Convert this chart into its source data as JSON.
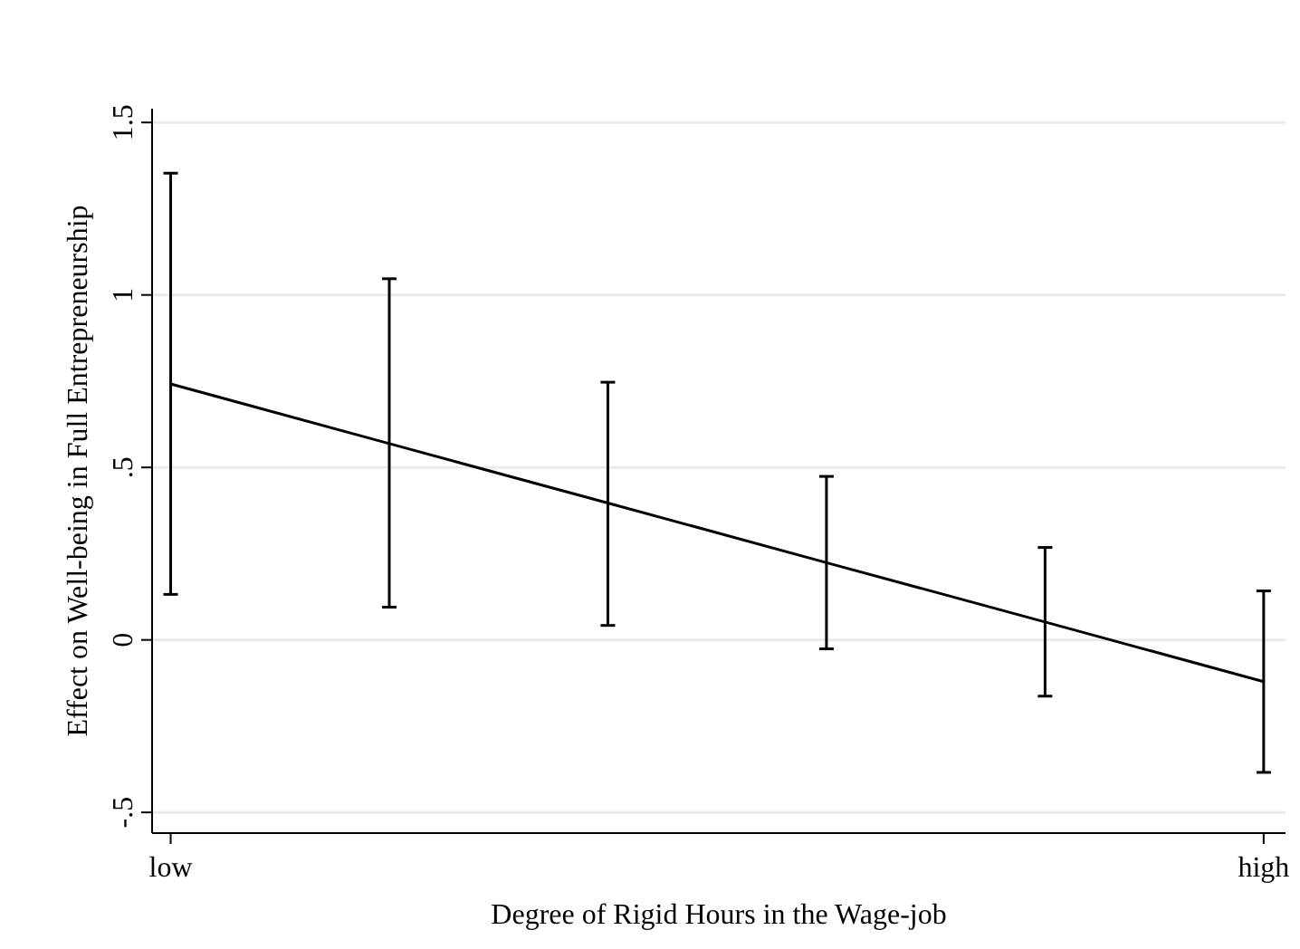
{
  "chart_data": {
    "type": "line",
    "xlabel": "Degree of Rigid Hours in the Wage-job",
    "ylabel": "Effect on Well-being in Full Entrepreneurship",
    "categories": [
      "low",
      null,
      null,
      null,
      null,
      "high"
    ],
    "series": [
      {
        "color": "#000000",
        "values": [
          0.742,
          0.569,
          0.397,
          0.224,
          0.052,
          -0.121
        ],
        "errors": [
          [
            0.132,
            1.353
          ],
          [
            0.095,
            1.047
          ],
          [
            0.042,
            0.747
          ],
          [
            -0.026,
            0.474
          ],
          [
            -0.163,
            0.268
          ],
          [
            -0.384,
            0.142
          ]
        ]
      }
    ],
    "ylim": [
      -0.56,
      1.54
    ],
    "yticks": [
      {
        "value": -0.5,
        "label": "-.5"
      },
      0,
      {
        "value": 0.5,
        "label": ".5"
      },
      1,
      1.5
    ],
    "grid": "y",
    "marker": "none",
    "line_style": "solid"
  }
}
